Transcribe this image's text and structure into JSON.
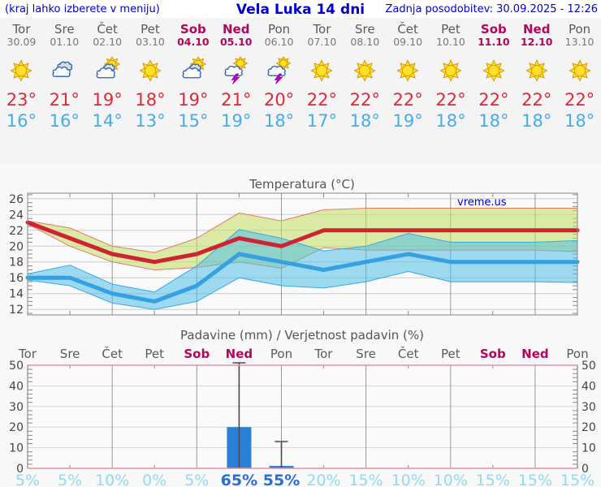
{
  "header": {
    "left_note": "(kraj lahko izberete v meniju)",
    "title": "Vela Luka 14 dni",
    "updated": "Zadnja posodobitev: 30.09.2025 - 12:26"
  },
  "watermark": "vreme.us",
  "colors": {
    "header_blue": "#0000cc",
    "weekend_red": "#b5045c",
    "day_gray": "#5a5a5a",
    "high_red": "#e02838",
    "low_blue": "#46acec",
    "temp_line_red": "#ce2333",
    "temp_line_blue": "#35a1e2",
    "high_band_fill": "rgba(193,222,95,0.55)",
    "high_band_edge": "#e27a6a",
    "low_band_fill": "rgba(80,190,230,0.55)",
    "low_band_edge": "#3aa8e8",
    "bar_blue": "#2b7fd9",
    "whisker_gray": "#4a4a4a",
    "prob_cyan": "#8fdcf0",
    "prob_highlight": "#2a6fd4",
    "pink_frame": "#e78fa3",
    "grid_gray": "#cccccc",
    "vgrid_gray": "#999999",
    "frame_gray": "#888888",
    "axis_text": "#444444",
    "title_text": "#555555"
  },
  "forecast": {
    "days": [
      {
        "name": "Tor",
        "date": "30.09",
        "weekend": false,
        "icon": "sun",
        "high": "23°",
        "low": "16°"
      },
      {
        "name": "Sre",
        "date": "01.10",
        "weekend": false,
        "icon": "cloudy",
        "high": "21°",
        "low": "16°"
      },
      {
        "name": "Čet",
        "date": "02.10",
        "weekend": false,
        "icon": "sun-cloud",
        "high": "19°",
        "low": "14°"
      },
      {
        "name": "Pet",
        "date": "03.10",
        "weekend": false,
        "icon": "sun",
        "high": "18°",
        "low": "13°"
      },
      {
        "name": "Sob",
        "date": "04.10",
        "weekend": true,
        "icon": "sun-cloud",
        "high": "19°",
        "low": "15°"
      },
      {
        "name": "Ned",
        "date": "05.10",
        "weekend": true,
        "icon": "storm",
        "high": "21°",
        "low": "19°"
      },
      {
        "name": "Pon",
        "date": "06.10",
        "weekend": false,
        "icon": "storm",
        "high": "20°",
        "low": "18°"
      },
      {
        "name": "Tor",
        "date": "07.10",
        "weekend": false,
        "icon": "sun",
        "high": "22°",
        "low": "17°"
      },
      {
        "name": "Sre",
        "date": "08.10",
        "weekend": false,
        "icon": "sun",
        "high": "22°",
        "low": "18°"
      },
      {
        "name": "Čet",
        "date": "09.10",
        "weekend": false,
        "icon": "sun",
        "high": "22°",
        "low": "19°"
      },
      {
        "name": "Pet",
        "date": "10.10",
        "weekend": false,
        "icon": "sun",
        "high": "22°",
        "low": "18°"
      },
      {
        "name": "Sob",
        "date": "11.10",
        "weekend": true,
        "icon": "sun",
        "high": "22°",
        "low": "18°"
      },
      {
        "name": "Ned",
        "date": "12.10",
        "weekend": true,
        "icon": "sun",
        "high": "22°",
        "low": "18°"
      },
      {
        "name": "Pon",
        "date": "13.10",
        "weekend": false,
        "icon": "sun",
        "high": "22°",
        "low": "18°"
      }
    ]
  },
  "chart_data": [
    {
      "type": "line",
      "title": "Temperatura (°C)",
      "x_days": [
        "Tor",
        "Sre",
        "Čet",
        "Pet",
        "Sob",
        "Ned",
        "Pon",
        "Tor",
        "Sre",
        "Čet",
        "Pet",
        "Sob",
        "Ned",
        "Pon"
      ],
      "ylim": [
        11.3,
        26.7
      ],
      "yticks": [
        12,
        14,
        16,
        18,
        20,
        22,
        24,
        26
      ],
      "grid": true,
      "legend_position": "none",
      "series": [
        {
          "name": "high_temp",
          "values": [
            23,
            21,
            19,
            18,
            19,
            21,
            20,
            22,
            22,
            22,
            22,
            22,
            22,
            22
          ]
        },
        {
          "name": "low_temp",
          "values": [
            16,
            16,
            14,
            13,
            15,
            19,
            18,
            17,
            18,
            19,
            18,
            18,
            18,
            18
          ]
        },
        {
          "name": "high_band_upper",
          "values": [
            23.2,
            22.3,
            20.0,
            19.2,
            21.0,
            24.2,
            23.2,
            24.6,
            24.8,
            24.8,
            24.8,
            24.8,
            24.8,
            24.8
          ]
        },
        {
          "name": "high_band_lower",
          "values": [
            22.8,
            20.0,
            18.0,
            17.0,
            17.3,
            18.0,
            17.2,
            19.8,
            19.5,
            19.5,
            19.5,
            19.5,
            19.5,
            19.3
          ]
        },
        {
          "name": "low_band_upper",
          "values": [
            16.5,
            17.6,
            15.2,
            14.2,
            17.5,
            22.1,
            21.0,
            19.4,
            20.0,
            21.6,
            20.5,
            20.5,
            20.5,
            20.7
          ]
        },
        {
          "name": "low_band_lower",
          "values": [
            15.7,
            15.0,
            12.8,
            12.0,
            13.0,
            16.0,
            15.0,
            14.7,
            15.5,
            16.8,
            15.5,
            15.5,
            15.5,
            15.4
          ]
        }
      ]
    },
    {
      "type": "bar",
      "title": "Padavine (mm) / Verjetnost padavin (%)",
      "x_days": [
        "Tor",
        "Sre",
        "Čet",
        "Pet",
        "Sob",
        "Ned",
        "Pon",
        "Tor",
        "Sre",
        "Čet",
        "Pet",
        "Sob",
        "Ned",
        "Pon"
      ],
      "weekend_mask": [
        false,
        false,
        false,
        false,
        true,
        true,
        false,
        false,
        false,
        false,
        false,
        true,
        true,
        false
      ],
      "ylim": [
        0,
        52
      ],
      "yticks": [
        0,
        10,
        20,
        30,
        40,
        50
      ],
      "grid": true,
      "precip_mm": [
        0,
        0,
        0,
        0,
        0,
        20,
        1.2,
        0,
        0,
        0,
        0,
        0,
        0,
        0
      ],
      "whisker_max_mm": [
        0,
        0,
        0,
        0,
        0,
        52,
        13,
        0,
        0,
        0,
        0,
        0,
        0,
        0
      ],
      "probability": [
        "5%",
        "5%",
        "10%",
        "0%",
        "5%",
        "65%",
        "55%",
        "20%",
        "15%",
        "10%",
        "10%",
        "15%",
        "15%",
        "15%"
      ],
      "probability_highlight": [
        false,
        false,
        false,
        false,
        false,
        true,
        true,
        false,
        false,
        false,
        false,
        false,
        false,
        false
      ]
    }
  ]
}
